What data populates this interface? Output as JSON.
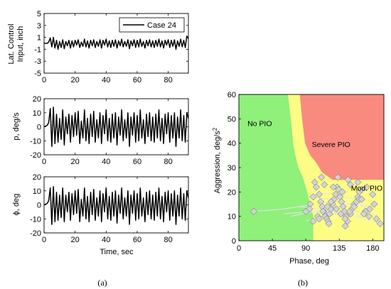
{
  "figure": {
    "caption_a": "(a)",
    "caption_b": "(b)"
  },
  "chart_data": [
    {
      "id": "lat-control",
      "type": "line",
      "ylabel": [
        "Lat. Control",
        "Input, inch"
      ],
      "xlabel": "",
      "xlim": [
        0,
        93
      ],
      "ylim": [
        -5,
        5
      ],
      "xticks": [
        0,
        20,
        40,
        60,
        80
      ],
      "yticks": [
        5,
        3,
        1,
        -1,
        -3,
        -5
      ],
      "legend": "top-right",
      "series": [
        {
          "name": "Case 24",
          "color": "#000000",
          "x": [
            0,
            2,
            3,
            4,
            5,
            6,
            7,
            8,
            9,
            10,
            11,
            12,
            13,
            14,
            15,
            16,
            17,
            18,
            19,
            20,
            21,
            22,
            23,
            24,
            25,
            26,
            27,
            28,
            29,
            30,
            31,
            32,
            33,
            34,
            35,
            36,
            37,
            38,
            39,
            40,
            41,
            42,
            43,
            44,
            45,
            46,
            47,
            48,
            49,
            50,
            51,
            52,
            53,
            54,
            55,
            56,
            57,
            58,
            59,
            60,
            61,
            62,
            63,
            64,
            65,
            66,
            67,
            68,
            69,
            70,
            71,
            72,
            73,
            74,
            75,
            76,
            77,
            78,
            79,
            80,
            81,
            82,
            83,
            84,
            85,
            86,
            87,
            88,
            89,
            90,
            91,
            92,
            93
          ],
          "y": [
            0,
            0,
            0.2,
            0.9,
            -0.6,
            1.0,
            -0.8,
            0.5,
            -1.0,
            0.3,
            -0.7,
            0.6,
            -0.9,
            0.3,
            -0.4,
            0.5,
            -0.8,
            0.4,
            -0.6,
            0.5,
            -0.3,
            0.6,
            -0.7,
            0.2,
            -0.5,
            0.7,
            -0.6,
            0.4,
            -0.8,
            0.5,
            -0.4,
            0.6,
            -0.7,
            0.3,
            -0.5,
            0.6,
            -0.8,
            0.5,
            -0.3,
            0.7,
            -0.6,
            0.4,
            -0.7,
            0.5,
            -0.5,
            0.6,
            -0.8,
            0.4,
            -0.4,
            0.7,
            -0.6,
            0.3,
            -0.5,
            0.6,
            -0.9,
            0.4,
            -0.4,
            0.6,
            -0.7,
            0.5,
            -0.6,
            0.7,
            -0.5,
            0.3,
            -0.8,
            0.5,
            -0.4,
            0.6,
            -0.6,
            0.4,
            -0.7,
            0.5,
            -0.5,
            0.7,
            -0.6,
            0.4,
            -0.8,
            0.5,
            -0.3,
            0.6,
            -0.7,
            0.5,
            -0.5,
            0.6,
            -1.0,
            0.4,
            -0.5,
            0.7,
            -0.6,
            0.5,
            -0.7,
            1.2,
            0.8
          ]
        }
      ]
    },
    {
      "id": "roll-rate",
      "type": "line",
      "ylabel": [
        "p, deg/s"
      ],
      "xlabel": "",
      "xlim": [
        0,
        93
      ],
      "ylim": [
        -20,
        20
      ],
      "xticks": [
        0,
        20,
        40,
        60,
        80
      ],
      "yticks": [
        20,
        10,
        0,
        -10,
        -20
      ],
      "series": [
        {
          "color": "#000000",
          "x": [
            0,
            2,
            3,
            4,
            5,
            6,
            7,
            8,
            9,
            10,
            11,
            12,
            13,
            14,
            15,
            16,
            17,
            18,
            19,
            20,
            21,
            22,
            23,
            24,
            25,
            26,
            27,
            28,
            29,
            30,
            31,
            32,
            33,
            34,
            35,
            36,
            37,
            38,
            39,
            40,
            41,
            42,
            43,
            44,
            45,
            46,
            47,
            48,
            49,
            50,
            51,
            52,
            53,
            54,
            55,
            56,
            57,
            58,
            59,
            60,
            61,
            62,
            63,
            64,
            65,
            66,
            67,
            68,
            69,
            70,
            71,
            72,
            73,
            74,
            75,
            76,
            77,
            78,
            79,
            80,
            81,
            82,
            83,
            84,
            85,
            86,
            87,
            88,
            89,
            90,
            91,
            92,
            93
          ],
          "y": [
            0,
            1,
            3,
            13,
            -14,
            14,
            -12,
            9,
            -11,
            6,
            -9,
            12,
            -13,
            7,
            -5,
            9,
            -11,
            8,
            -7,
            10,
            -6,
            11,
            -12,
            4,
            -8,
            12,
            -10,
            6,
            -12,
            9,
            -7,
            11,
            -11,
            5,
            -8,
            10,
            -12,
            8,
            -5,
            12,
            -10,
            6,
            -11,
            9,
            -8,
            10,
            -13,
            7,
            -6,
            12,
            -10,
            5,
            -8,
            10,
            -14,
            7,
            -6,
            10,
            -11,
            8,
            -10,
            12,
            -8,
            5,
            -12,
            9,
            -7,
            10,
            -10,
            7,
            -11,
            9,
            -8,
            12,
            -10,
            6,
            -12,
            9,
            -5,
            10,
            -11,
            8,
            -8,
            10,
            -14,
            7,
            -8,
            12,
            -10,
            8,
            -11,
            10,
            6
          ]
        }
      ]
    },
    {
      "id": "bank-angle",
      "type": "line",
      "ylabel": [
        "ϕ, deg"
      ],
      "xlabel": "Time, sec",
      "xlim": [
        0,
        93
      ],
      "ylim": [
        -20,
        20
      ],
      "xticks": [
        0,
        20,
        40,
        60,
        80
      ],
      "yticks": [
        20,
        10,
        0,
        -10,
        -20
      ],
      "series": [
        {
          "color": "#000000",
          "x": [
            0,
            2,
            3,
            4,
            5,
            6,
            7,
            8,
            9,
            10,
            11,
            12,
            13,
            14,
            15,
            16,
            17,
            18,
            19,
            20,
            21,
            22,
            23,
            24,
            25,
            26,
            27,
            28,
            29,
            30,
            31,
            32,
            33,
            34,
            35,
            36,
            37,
            38,
            39,
            40,
            41,
            42,
            43,
            44,
            45,
            46,
            47,
            48,
            49,
            50,
            51,
            52,
            53,
            54,
            55,
            56,
            57,
            58,
            59,
            60,
            61,
            62,
            63,
            64,
            65,
            66,
            67,
            68,
            69,
            70,
            71,
            72,
            73,
            74,
            75,
            76,
            77,
            78,
            79,
            80,
            81,
            82,
            83,
            84,
            85,
            86,
            87,
            88,
            89,
            90,
            91,
            92,
            93
          ],
          "y": [
            0,
            1,
            3,
            12,
            -14,
            13,
            -12,
            9,
            -11,
            7,
            -9,
            12,
            -12,
            7,
            -5,
            9,
            -11,
            8,
            -7,
            10,
            -6,
            11,
            -12,
            4,
            -8,
            12,
            -10,
            6,
            -12,
            9,
            -7,
            11,
            -11,
            5,
            -8,
            10,
            -12,
            8,
            -5,
            12,
            -10,
            6,
            -11,
            9,
            -8,
            10,
            -13,
            7,
            -6,
            12,
            -10,
            5,
            -8,
            10,
            -14,
            7,
            -6,
            10,
            -11,
            8,
            -10,
            12,
            -8,
            5,
            -12,
            9,
            -7,
            10,
            -10,
            7,
            -11,
            9,
            -8,
            12,
            -10,
            6,
            -12,
            9,
            -5,
            10,
            -11,
            8,
            -8,
            10,
            -14,
            7,
            -8,
            12,
            -10,
            8,
            -11,
            10,
            5
          ]
        }
      ]
    },
    {
      "id": "pio-boundary",
      "type": "scatter",
      "xlabel": "Phase, deg",
      "ylabel": "Aggression, deg/s",
      "ylabel_sup": "2",
      "xlim": [
        0,
        195
      ],
      "ylim": [
        0,
        60
      ],
      "xticks": [
        0,
        45,
        90,
        135,
        180
      ],
      "yticks": [
        0,
        10,
        20,
        30,
        40,
        50,
        60
      ],
      "regions": [
        {
          "label": "No PIO",
          "color": "#8ff07a",
          "label_at": [
            28,
            47
          ]
        },
        {
          "label": "Mod. PIO",
          "color": "#fdfd86",
          "label_at": [
            172,
            20.5
          ]
        },
        {
          "label": "Severe PIO",
          "color": "#f98a80",
          "label_at": [
            124,
            38.5
          ]
        }
      ],
      "boundaries": {
        "mod_pio": [
          [
            66,
            60
          ],
          [
            70,
            50
          ],
          [
            73,
            40
          ],
          [
            76,
            35
          ],
          [
            80,
            30
          ],
          [
            86,
            26
          ],
          [
            92,
            20
          ],
          [
            96,
            15
          ],
          [
            100,
            10
          ],
          [
            100,
            0
          ]
        ],
        "severe_pio": [
          [
            82,
            60
          ],
          [
            85,
            50
          ],
          [
            89,
            40
          ],
          [
            96,
            35
          ],
          [
            104,
            32
          ],
          [
            112,
            28
          ],
          [
            126,
            25
          ],
          [
            195,
            25
          ]
        ]
      },
      "points": {
        "marker": "diamond",
        "color": "#d4d4d4",
        "x": [
          20,
          90,
          96,
          100,
          104,
          108,
          110,
          112,
          114,
          116,
          118,
          120,
          122,
          124,
          126,
          128,
          130,
          132,
          134,
          136,
          138,
          140,
          142,
          144,
          146,
          150,
          152,
          155,
          158,
          160,
          162,
          165,
          170,
          175,
          180,
          185,
          190,
          100,
          106,
          113,
          119,
          124,
          131,
          137,
          143,
          149,
          155,
          162,
          168,
          176,
          102,
          115,
          127,
          139,
          150,
          165,
          182,
          111,
          133,
          147,
          160,
          172,
          95,
          108,
          121,
          143
        ],
        "y": [
          12,
          12,
          15,
          18,
          22,
          19,
          16,
          14,
          12,
          10,
          9,
          8,
          11,
          13,
          15,
          17,
          19,
          22,
          21,
          18,
          16,
          14,
          12,
          10,
          8,
          11,
          13,
          15,
          16,
          18,
          20,
          21,
          12,
          10,
          19,
          9,
          7,
          8,
          10,
          12,
          14,
          16,
          13,
          11,
          9,
          12,
          14,
          17,
          11,
          13,
          24,
          23,
          22,
          20,
          23,
          17,
          15,
          26,
          26,
          25,
          24,
          22,
          13,
          9,
          7,
          6
        ]
      },
      "trails": {
        "color": "#e4e4e4",
        "lines": [
          {
            "x": [
              20,
              60,
              100,
              130
            ],
            "y": [
              12,
              13,
              15,
              16
            ]
          },
          {
            "x": [
              70,
              100,
              135,
              175
            ],
            "y": [
              10,
              12,
              14,
              17
            ]
          },
          {
            "x": [
              80,
              110,
              145,
              190
            ],
            "y": [
              14,
              13,
              11,
              7
            ]
          },
          {
            "x": [
              90,
              115,
              140,
              170
            ],
            "y": [
              8,
              10,
              12,
              12
            ]
          },
          {
            "x": [
              95,
              120,
              150,
              180
            ],
            "y": [
              18,
              17,
              15,
              14
            ]
          },
          {
            "x": [
              60,
              95,
              130,
              165
            ],
            "y": [
              11,
              12,
              11,
              10
            ]
          },
          {
            "x": [
              100,
              125,
              155,
              185
            ],
            "y": [
              20,
              19,
              17,
              10
            ]
          }
        ]
      }
    }
  ]
}
